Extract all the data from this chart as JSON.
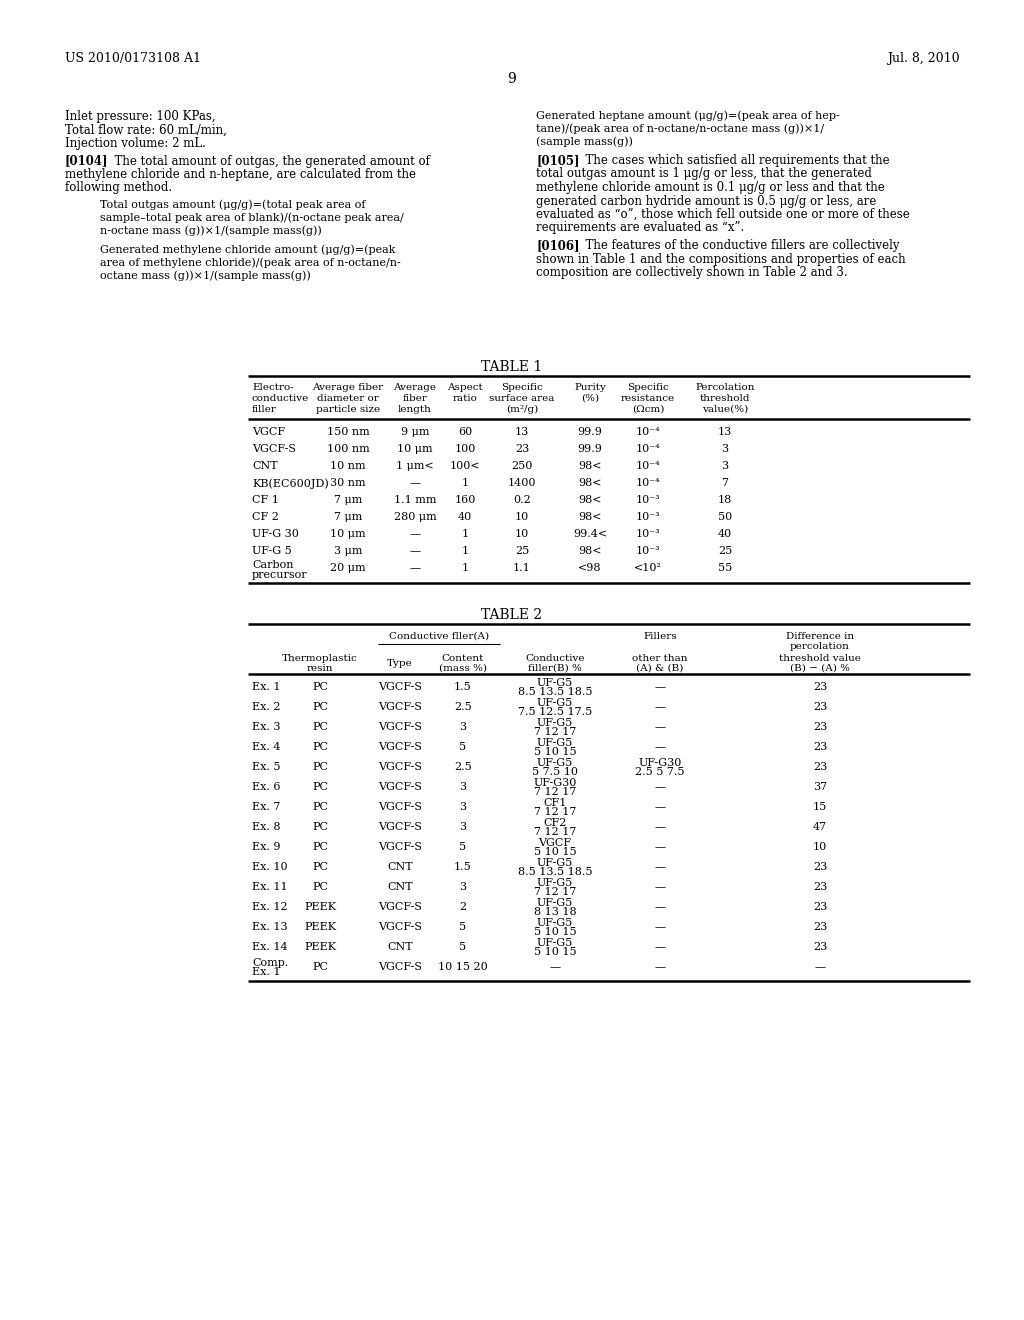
{
  "header_left": "US 2010/0173108 A1",
  "header_right": "Jul. 8, 2010",
  "page_number": "9",
  "table1_title": "TABLE 1",
  "table1_rows": [
    [
      "VGCF",
      "150 nm",
      "9 μm",
      "60",
      "13",
      "99.9",
      "10⁻⁴",
      "13"
    ],
    [
      "VGCF-S",
      "100 nm",
      "10 μm",
      "100",
      "23",
      "99.9",
      "10⁻⁴",
      "3"
    ],
    [
      "CNT",
      "10 nm",
      "1 μm<",
      "100<",
      "250",
      "98<",
      "10⁻⁴",
      "3"
    ],
    [
      "KB(EC600JD)",
      "30 nm",
      "—",
      "1",
      "1400",
      "98<",
      "10⁻⁴",
      "7"
    ],
    [
      "CF 1",
      "7 μm",
      "1.1 mm",
      "160",
      "0.2",
      "98<",
      "10⁻³",
      "18"
    ],
    [
      "CF 2",
      "7 μm",
      "280 μm",
      "40",
      "10",
      "98<",
      "10⁻³",
      "50"
    ],
    [
      "UF-G 30",
      "10 μm",
      "—",
      "1",
      "10",
      "99.4<",
      "10⁻³",
      "40"
    ],
    [
      "UF-G 5",
      "3 μm",
      "—",
      "1",
      "25",
      "98<",
      "10⁻³",
      "25"
    ],
    [
      "Carbon\nprecursor",
      "20 μm",
      "—",
      "1",
      "1.1",
      "<98",
      "<10²",
      "55"
    ]
  ],
  "table2_title": "TABLE 2",
  "table2_rows": [
    [
      "Ex. 1",
      "PC",
      "VGCF-S",
      "1.5",
      "UF-G5\n8.5 13.5 18.5",
      "—",
      "23"
    ],
    [
      "Ex. 2",
      "PC",
      "VGCF-S",
      "2.5",
      "UF-G5\n7.5 12.5 17.5",
      "—",
      "23"
    ],
    [
      "Ex. 3",
      "PC",
      "VGCF-S",
      "3",
      "UF-G5\n7 12 17",
      "—",
      "23"
    ],
    [
      "Ex. 4",
      "PC",
      "VGCF-S",
      "5",
      "UF-G5\n5 10 15",
      "—",
      "23"
    ],
    [
      "Ex. 5",
      "PC",
      "VGCF-S",
      "2.5",
      "UF-G5\n5 7.5 10",
      "UF-G30\n2.5 5 7.5",
      "23"
    ],
    [
      "Ex. 6",
      "PC",
      "VGCF-S",
      "3",
      "UF-G30\n7 12 17",
      "—",
      "37"
    ],
    [
      "Ex. 7",
      "PC",
      "VGCF-S",
      "3",
      "CF1\n7 12 17",
      "—",
      "15"
    ],
    [
      "Ex. 8",
      "PC",
      "VGCF-S",
      "3",
      "CF2\n7 12 17",
      "—",
      "47"
    ],
    [
      "Ex. 9",
      "PC",
      "VGCF-S",
      "5",
      "VGCF\n5 10 15",
      "—",
      "10"
    ],
    [
      "Ex. 10",
      "PC",
      "CNT",
      "1.5",
      "UF-G5\n8.5 13.5 18.5",
      "—",
      "23"
    ],
    [
      "Ex. 11",
      "PC",
      "CNT",
      "3",
      "UF-G5\n7 12 17",
      "—",
      "23"
    ],
    [
      "Ex. 12",
      "PEEK",
      "VGCF-S",
      "2",
      "UF-G5\n8 13 18",
      "—",
      "23"
    ],
    [
      "Ex. 13",
      "PEEK",
      "VGCF-S",
      "5",
      "UF-G5\n5 10 15",
      "—",
      "23"
    ],
    [
      "Ex. 14",
      "PEEK",
      "CNT",
      "5",
      "UF-G5\n5 10 15",
      "—",
      "23"
    ],
    [
      "Comp.\nEx. 1",
      "PC",
      "VGCF-S",
      "10 15 20",
      "—",
      "—",
      "—"
    ]
  ]
}
